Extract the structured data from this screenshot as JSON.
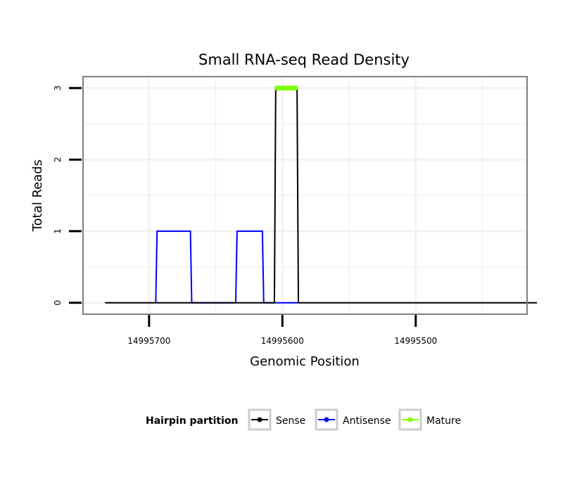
{
  "chart_data": {
    "type": "line",
    "title": "Small RNA-seq Read Density",
    "xlabel": "Genomic Position",
    "ylabel": "Total Reads",
    "x_reversed": true,
    "xlim": [
      14995749,
      14995417
    ],
    "ylim": [
      -0.15,
      3.15
    ],
    "x_ticks": [
      14995700,
      14995600,
      14995500
    ],
    "x_tick_labels": [
      "14995700",
      "14995600",
      "14995500"
    ],
    "y_ticks": [
      0,
      1,
      2,
      3
    ],
    "y_tick_labels": [
      "0",
      "1",
      "2",
      "3"
    ],
    "grid": true,
    "legend": {
      "title": "Hairpin partition",
      "position": "bottom",
      "entries": [
        {
          "label": "Sense",
          "color": "#000000"
        },
        {
          "label": "Antisense",
          "color": "#0000ff"
        },
        {
          "label": "Mature",
          "color": "#7fff00"
        }
      ]
    },
    "series": [
      {
        "name": "Sense",
        "color": "#000000",
        "x": [
          14995733,
          14995606,
          14995605,
          14995589,
          14995588,
          14995409
        ],
        "y": [
          0,
          0,
          3,
          3,
          0,
          0
        ]
      },
      {
        "name": "Antisense",
        "color": "#0000ff",
        "x": [
          14995695,
          14995694,
          14995669,
          14995668,
          14995635,
          14995634,
          14995615,
          14995614,
          14995606,
          14995605,
          14995589,
          14995588
        ],
        "y": [
          0,
          1,
          1,
          0,
          0,
          1,
          1,
          0,
          0,
          0,
          0,
          0
        ]
      },
      {
        "name": "Mature",
        "color": "#7fff00",
        "x": [
          14995604,
          14995590
        ],
        "y": [
          3,
          3
        ]
      }
    ]
  }
}
